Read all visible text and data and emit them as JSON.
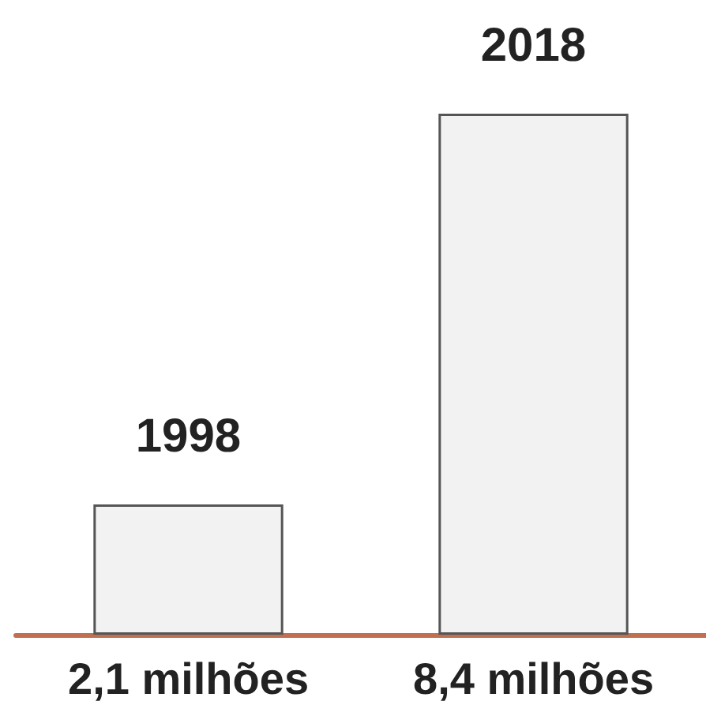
{
  "chart_data": {
    "type": "bar",
    "categories": [
      "1998",
      "2018"
    ],
    "values": [
      2.1,
      8.4
    ],
    "value_labels": [
      "2,1 milhões",
      "8,4 milhões"
    ],
    "color": "#f2f2f2"
  }
}
